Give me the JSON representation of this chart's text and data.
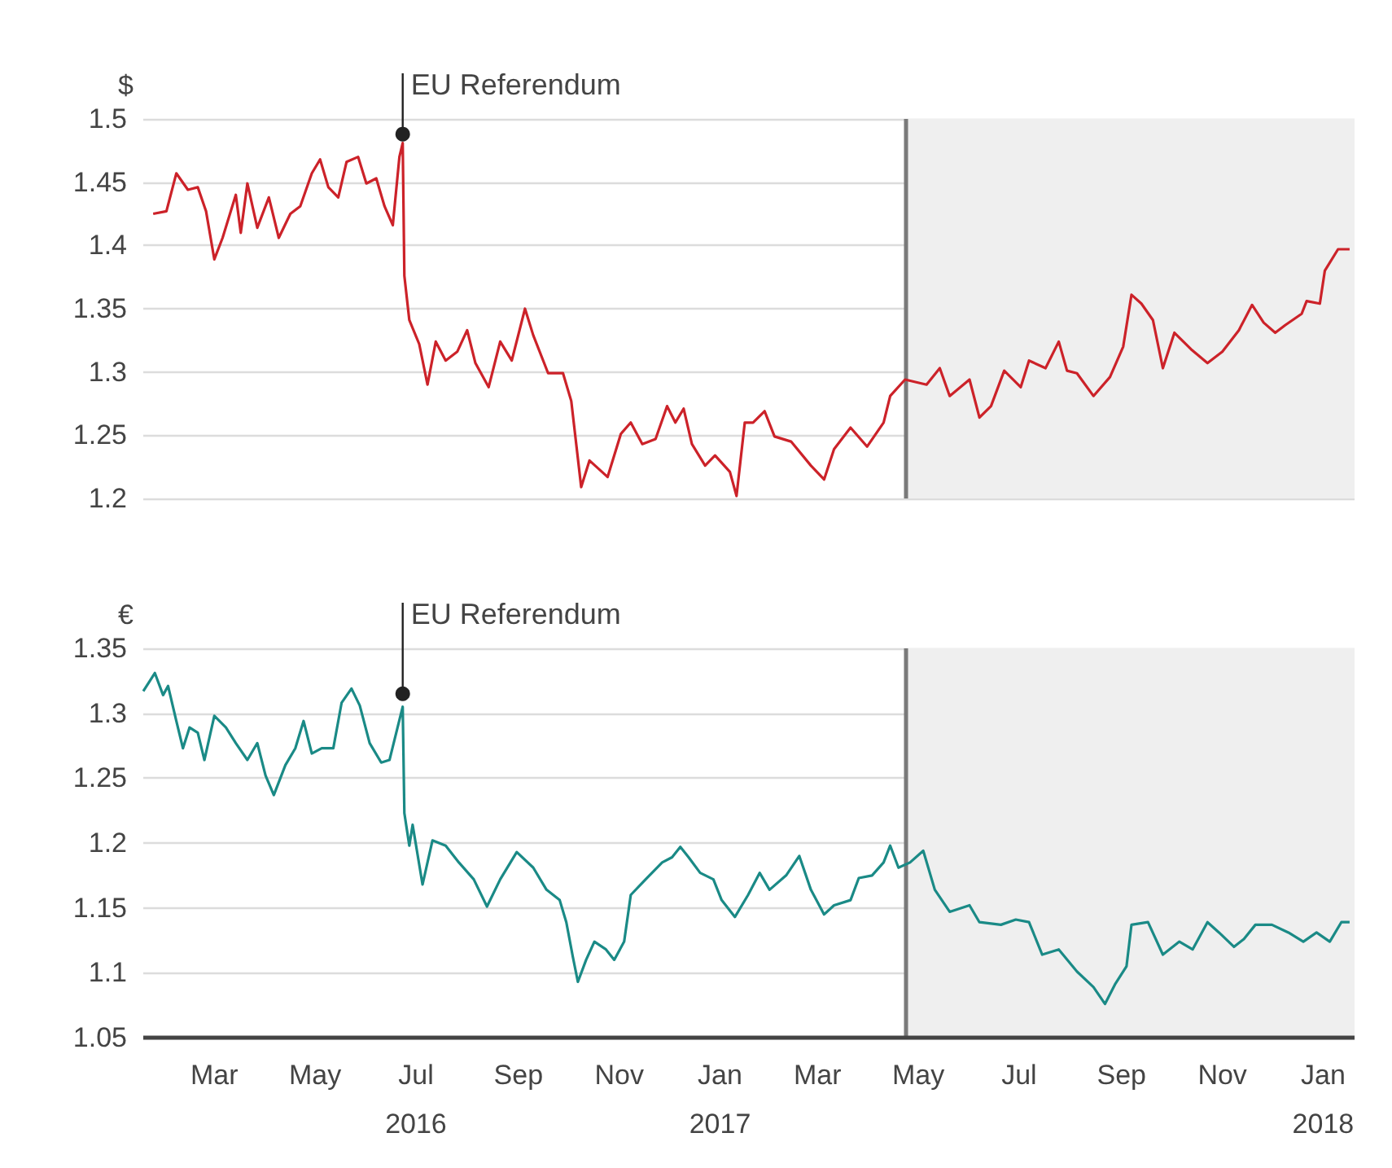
{
  "chart_data": [
    {
      "type": "line",
      "ylabel": "$",
      "xlim": [
        "2016-01-18",
        "2018-01-20"
      ],
      "ylim": [
        1.2,
        1.5
      ],
      "yticks": [
        1.2,
        1.25,
        1.3,
        1.35,
        1.4,
        1.45,
        1.5
      ],
      "tick_labels": "y",
      "grid": "y",
      "series": [
        {
          "color": "#cc2229",
          "x": [
            "2016-01-24",
            "2016-02-01",
            "2016-02-07",
            "2016-02-14",
            "2016-02-20",
            "2016-02-25",
            "2016-03-01",
            "2016-03-06",
            "2016-03-14",
            "2016-03-17",
            "2016-03-21",
            "2016-03-27",
            "2016-04-03",
            "2016-04-09",
            "2016-04-16",
            "2016-04-22",
            "2016-04-29",
            "2016-05-04",
            "2016-05-09",
            "2016-05-15",
            "2016-05-20",
            "2016-05-27",
            "2016-06-01",
            "2016-06-07",
            "2016-06-12",
            "2016-06-17",
            "2016-06-21",
            "2016-06-23",
            "2016-06-24",
            "2016-06-27",
            "2016-07-03",
            "2016-07-08",
            "2016-07-13",
            "2016-07-19",
            "2016-07-26",
            "2016-08-01",
            "2016-08-06",
            "2016-08-14",
            "2016-08-21",
            "2016-08-28",
            "2016-09-05",
            "2016-09-10",
            "2016-09-19",
            "2016-09-28",
            "2016-10-03",
            "2016-10-09",
            "2016-10-14",
            "2016-10-25",
            "2016-11-02",
            "2016-11-08",
            "2016-11-15",
            "2016-11-23",
            "2016-11-30",
            "2016-12-05",
            "2016-12-10",
            "2016-12-15",
            "2016-12-23",
            "2016-12-29",
            "2017-01-07",
            "2017-01-11",
            "2017-01-16",
            "2017-01-21",
            "2017-01-28",
            "2017-02-03",
            "2017-02-13",
            "2017-02-25",
            "2017-03-05",
            "2017-03-11",
            "2017-03-21",
            "2017-03-31",
            "2017-04-10",
            "2017-04-14",
            "2017-04-23",
            "2017-05-06",
            "2017-05-14",
            "2017-05-20",
            "2017-06-01",
            "2017-06-07",
            "2017-06-14",
            "2017-06-22",
            "2017-07-02",
            "2017-07-07",
            "2017-07-17",
            "2017-07-25",
            "2017-07-30",
            "2017-08-05",
            "2017-08-15",
            "2017-08-25",
            "2017-09-02",
            "2017-09-07",
            "2017-09-13",
            "2017-09-20",
            "2017-09-26",
            "2017-10-03",
            "2017-10-13",
            "2017-10-23",
            "2017-11-01",
            "2017-11-11",
            "2017-11-19",
            "2017-11-26",
            "2017-12-03",
            "2017-12-09",
            "2017-12-19",
            "2017-12-22",
            "2017-12-30",
            "2018-01-02",
            "2018-01-10",
            "2018-01-17"
          ],
          "values": [
            1.425,
            1.427,
            1.457,
            1.444,
            1.446,
            1.427,
            1.389,
            1.406,
            1.44,
            1.41,
            1.449,
            1.414,
            1.438,
            1.406,
            1.425,
            1.431,
            1.457,
            1.468,
            1.446,
            1.438,
            1.466,
            1.47,
            1.449,
            1.453,
            1.431,
            1.416,
            1.47,
            1.481,
            1.376,
            1.341,
            1.322,
            1.29,
            1.324,
            1.309,
            1.316,
            1.333,
            1.307,
            1.288,
            1.324,
            1.309,
            1.35,
            1.329,
            1.299,
            1.299,
            1.277,
            1.209,
            1.23,
            1.217,
            1.251,
            1.26,
            1.243,
            1.247,
            1.273,
            1.26,
            1.271,
            1.243,
            1.226,
            1.234,
            1.221,
            1.202,
            1.26,
            1.26,
            1.269,
            1.249,
            1.245,
            1.226,
            1.215,
            1.239,
            1.256,
            1.241,
            1.26,
            1.281,
            1.294,
            1.29,
            1.303,
            1.281,
            1.294,
            1.264,
            1.273,
            1.301,
            1.288,
            1.309,
            1.303,
            1.324,
            1.301,
            1.299,
            1.281,
            1.296,
            1.32,
            1.361,
            1.354,
            1.341,
            1.303,
            1.331,
            1.318,
            1.307,
            1.316,
            1.333,
            1.353,
            1.339,
            1.331,
            1.337,
            1.346,
            1.356,
            1.354,
            1.38,
            1.397,
            1.397
          ]
        }
      ],
      "annotations": [
        {
          "text": "EU Referendum",
          "x": "2016-06-23",
          "y": 1.488
        }
      ],
      "ref_lines": [
        {
          "axis": "x",
          "value": "2017-04-23",
          "color": "#7a7a7a"
        }
      ],
      "bands": [
        {
          "axis": "x",
          "from": "2017-04-23",
          "to": "2018-01-20",
          "color": "#efefef"
        }
      ]
    },
    {
      "type": "line",
      "ylabel": "€",
      "xlim": [
        "2016-01-18",
        "2018-01-20"
      ],
      "ylim": [
        1.05,
        1.35
      ],
      "yticks": [
        1.05,
        1.1,
        1.15,
        1.2,
        1.25,
        1.3,
        1.35
      ],
      "grid": "y",
      "xticks": [
        {
          "value": "2016-03-01",
          "label": "Mar"
        },
        {
          "value": "2016-05-01",
          "label": "May"
        },
        {
          "value": "2016-07-01",
          "label": "Jul\n2016"
        },
        {
          "value": "2016-09-01",
          "label": "Sep"
        },
        {
          "value": "2016-11-01",
          "label": "Nov"
        },
        {
          "value": "2017-01-01",
          "label": "Jan\n2017"
        },
        {
          "value": "2017-03-01",
          "label": "Mar"
        },
        {
          "value": "2017-05-01",
          "label": "May"
        },
        {
          "value": "2017-07-01",
          "label": "Jul"
        },
        {
          "value": "2017-09-01",
          "label": "Sep"
        },
        {
          "value": "2017-11-01",
          "label": "Nov"
        },
        {
          "value": "2018-01-01",
          "label": "Jan\n2018"
        }
      ],
      "series": [
        {
          "color": "#1a8a86",
          "x": [
            "2016-01-18",
            "2016-01-25",
            "2016-01-30",
            "2016-02-02",
            "2016-02-07",
            "2016-02-11",
            "2016-02-15",
            "2016-02-20",
            "2016-02-24",
            "2016-03-01",
            "2016-03-08",
            "2016-03-14",
            "2016-03-21",
            "2016-03-27",
            "2016-04-01",
            "2016-04-06",
            "2016-04-13",
            "2016-04-19",
            "2016-04-24",
            "2016-04-29",
            "2016-05-05",
            "2016-05-12",
            "2016-05-17",
            "2016-05-23",
            "2016-05-28",
            "2016-06-03",
            "2016-06-10",
            "2016-06-15",
            "2016-06-23",
            "2016-06-24",
            "2016-06-27",
            "2016-06-29",
            "2016-07-05",
            "2016-07-11",
            "2016-07-19",
            "2016-07-27",
            "2016-08-05",
            "2016-08-13",
            "2016-08-21",
            "2016-08-31",
            "2016-09-10",
            "2016-09-18",
            "2016-09-26",
            "2016-09-30",
            "2016-10-04",
            "2016-10-07",
            "2016-10-12",
            "2016-10-17",
            "2016-10-24",
            "2016-10-29",
            "2016-11-04",
            "2016-11-08",
            "2016-11-17",
            "2016-11-27",
            "2016-12-03",
            "2016-12-08",
            "2016-12-13",
            "2016-12-20",
            "2016-12-28",
            "2017-01-02",
            "2017-01-10",
            "2017-01-18",
            "2017-01-25",
            "2017-01-31",
            "2017-02-10",
            "2017-02-18",
            "2017-02-25",
            "2017-03-05",
            "2017-03-11",
            "2017-03-21",
            "2017-03-26",
            "2017-04-03",
            "2017-04-10",
            "2017-04-14",
            "2017-04-19",
            "2017-04-26",
            "2017-05-04",
            "2017-05-11",
            "2017-05-20",
            "2017-06-01",
            "2017-06-07",
            "2017-06-20",
            "2017-06-29",
            "2017-07-07",
            "2017-07-15",
            "2017-07-25",
            "2017-08-05",
            "2017-08-15",
            "2017-08-22",
            "2017-08-28",
            "2017-09-04",
            "2017-09-07",
            "2017-09-17",
            "2017-09-26",
            "2017-10-06",
            "2017-10-14",
            "2017-10-23",
            "2017-10-30",
            "2017-11-08",
            "2017-11-14",
            "2017-11-21",
            "2017-12-01",
            "2017-12-11",
            "2017-12-20",
            "2017-12-28",
            "2018-01-05",
            "2018-01-12",
            "2018-01-17"
          ],
          "values": [
            1.317,
            1.331,
            1.314,
            1.321,
            1.294,
            1.273,
            1.289,
            1.285,
            1.264,
            1.298,
            1.289,
            1.277,
            1.264,
            1.277,
            1.252,
            1.237,
            1.26,
            1.273,
            1.294,
            1.269,
            1.273,
            1.273,
            1.308,
            1.319,
            1.306,
            1.277,
            1.262,
            1.264,
            1.305,
            1.223,
            1.198,
            1.214,
            1.168,
            1.202,
            1.198,
            1.185,
            1.172,
            1.151,
            1.172,
            1.193,
            1.181,
            1.164,
            1.156,
            1.139,
            1.112,
            1.093,
            1.11,
            1.124,
            1.118,
            1.11,
            1.124,
            1.16,
            1.172,
            1.185,
            1.189,
            1.197,
            1.189,
            1.177,
            1.172,
            1.156,
            1.143,
            1.16,
            1.177,
            1.164,
            1.175,
            1.19,
            1.164,
            1.145,
            1.152,
            1.156,
            1.173,
            1.175,
            1.185,
            1.198,
            1.181,
            1.185,
            1.194,
            1.164,
            1.147,
            1.152,
            1.139,
            1.137,
            1.141,
            1.139,
            1.114,
            1.118,
            1.101,
            1.089,
            1.076,
            1.091,
            1.105,
            1.137,
            1.139,
            1.114,
            1.124,
            1.118,
            1.139,
            1.131,
            1.12,
            1.126,
            1.137,
            1.137,
            1.131,
            1.124,
            1.131,
            1.124,
            1.139,
            1.139
          ]
        }
      ],
      "annotations": [
        {
          "text": "EU Referendum",
          "x": "2016-06-23",
          "y": 1.315
        }
      ],
      "ref_lines": [
        {
          "axis": "x",
          "value": "2017-04-23",
          "color": "#7a7a7a"
        }
      ],
      "bands": [
        {
          "axis": "x",
          "from": "2017-04-23",
          "to": "2018-01-20",
          "color": "#efefef"
        }
      ]
    }
  ]
}
